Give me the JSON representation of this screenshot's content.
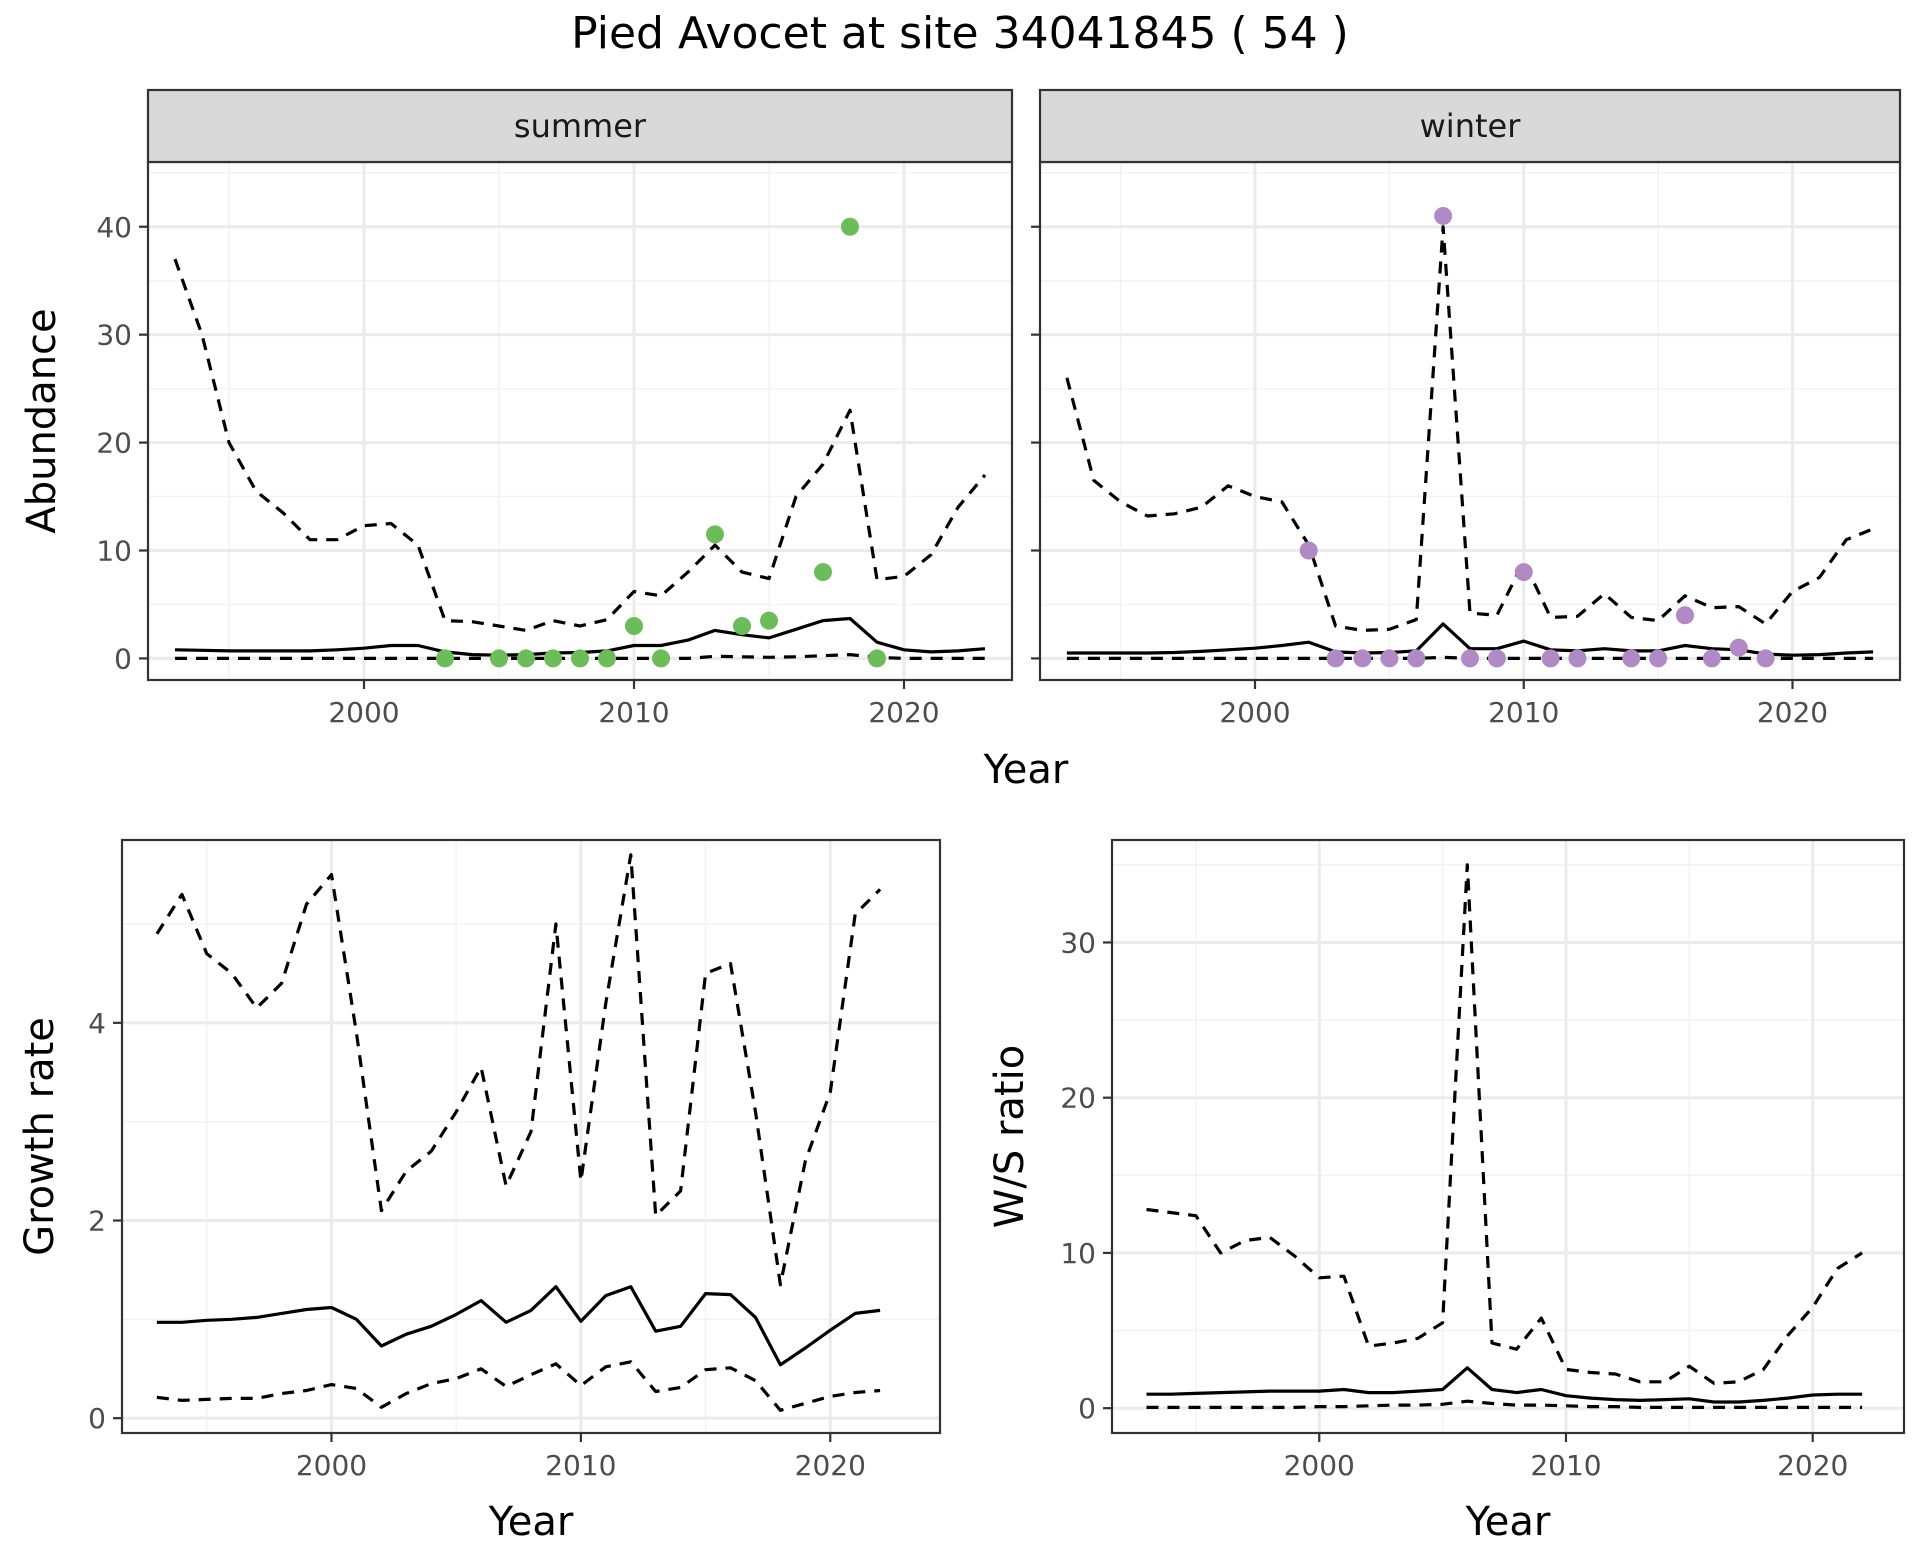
{
  "figure": {
    "title": "Pied Avocet at site 34041845 ( 54 )"
  },
  "chart_data": [
    {
      "id": "summer",
      "type": "line",
      "facet_label": "summer",
      "xlabel": "Year",
      "ylabel": "Abundance",
      "xlim": [
        1992,
        2024
      ],
      "ylim": [
        -2,
        46
      ],
      "x_ticks": [
        2000,
        2010,
        2020
      ],
      "y_ticks": [
        0,
        10,
        20,
        30,
        40
      ],
      "grid": true,
      "point_color": "#6cbc5a",
      "series": [
        {
          "name": "",
          "style": "solid",
          "x": [
            1993,
            1994,
            1995,
            1996,
            1997,
            1998,
            1999,
            2000,
            2001,
            2002,
            2003,
            2004,
            2005,
            2006,
            2007,
            2008,
            2009,
            2010,
            2011,
            2012,
            2013,
            2014,
            2015,
            2016,
            2017,
            2018,
            2019,
            2020,
            2021,
            2022,
            2023
          ],
          "y": [
            0.8,
            0.75,
            0.7,
            0.7,
            0.7,
            0.7,
            0.8,
            0.95,
            1.2,
            1.2,
            0.6,
            0.35,
            0.3,
            0.35,
            0.5,
            0.55,
            0.7,
            1.2,
            1.2,
            1.7,
            2.6,
            2.2,
            1.9,
            2.7,
            3.5,
            3.7,
            1.5,
            0.8,
            0.6,
            0.7,
            0.9
          ]
        },
        {
          "name": "",
          "style": "dashed",
          "x": [
            1993,
            1994,
            1995,
            1996,
            1997,
            1998,
            1999,
            2000,
            2001,
            2002,
            2003,
            2004,
            2005,
            2006,
            2007,
            2008,
            2009,
            2010,
            2011,
            2012,
            2013,
            2014,
            2015,
            2016,
            2017,
            2018,
            2019,
            2020,
            2021,
            2022,
            2023
          ],
          "y": [
            37,
            30,
            20,
            15.5,
            13.5,
            11,
            11,
            12.3,
            12.5,
            10.5,
            3.5,
            3.4,
            3,
            2.6,
            3.5,
            3,
            3.6,
            6.2,
            5.8,
            8,
            10.5,
            8,
            7.4,
            15,
            18,
            23,
            7.3,
            7.6,
            9.6,
            14,
            17
          ]
        },
        {
          "name": "",
          "style": "dashed",
          "x": [
            1993,
            1994,
            1995,
            1996,
            1997,
            1998,
            1999,
            2000,
            2001,
            2002,
            2003,
            2004,
            2005,
            2006,
            2007,
            2008,
            2009,
            2010,
            2011,
            2012,
            2013,
            2014,
            2015,
            2016,
            2017,
            2018,
            2019,
            2020,
            2021,
            2022,
            2023
          ],
          "y": [
            0,
            0,
            0,
            0,
            0,
            0,
            0,
            0,
            0,
            0,
            0,
            0,
            0,
            0,
            0,
            0,
            0,
            0,
            0,
            0,
            0.2,
            0.15,
            0.1,
            0.15,
            0.25,
            0.35,
            0.1,
            0,
            0,
            0,
            0
          ]
        }
      ],
      "points": {
        "x": [
          2003,
          2005,
          2006,
          2007,
          2008,
          2009,
          2010,
          2011,
          2013,
          2014,
          2015,
          2017,
          2018,
          2019
        ],
        "y": [
          0,
          0,
          0,
          0,
          0,
          0,
          3,
          0,
          11.5,
          3,
          3.5,
          8,
          40,
          0
        ]
      }
    },
    {
      "id": "winter",
      "type": "line",
      "facet_label": "winter",
      "xlabel": "Year",
      "ylabel": "Abundance",
      "xlim": [
        1992,
        2024
      ],
      "ylim": [
        -2,
        46
      ],
      "x_ticks": [
        2000,
        2010,
        2020
      ],
      "y_ticks": [
        0,
        10,
        20,
        30,
        40
      ],
      "grid": true,
      "point_color": "#b18ac5",
      "series": [
        {
          "name": "",
          "style": "solid",
          "x": [
            1993,
            1994,
            1995,
            1996,
            1997,
            1998,
            1999,
            2000,
            2001,
            2002,
            2003,
            2004,
            2005,
            2006,
            2007,
            2008,
            2009,
            2010,
            2011,
            2012,
            2013,
            2014,
            2015,
            2016,
            2017,
            2018,
            2019,
            2020,
            2021,
            2022,
            2023
          ],
          "y": [
            0.5,
            0.5,
            0.5,
            0.5,
            0.55,
            0.65,
            0.8,
            0.95,
            1.2,
            1.5,
            0.6,
            0.5,
            0.55,
            0.7,
            3.2,
            0.9,
            0.9,
            1.6,
            0.8,
            0.7,
            0.9,
            0.7,
            0.7,
            1.2,
            0.9,
            0.8,
            0.4,
            0.3,
            0.35,
            0.5,
            0.6
          ]
        },
        {
          "name": "",
          "style": "dashed",
          "x": [
            1993,
            1994,
            1995,
            1996,
            1997,
            1998,
            1999,
            2000,
            2001,
            2002,
            2003,
            2004,
            2005,
            2006,
            2007,
            2008,
            2009,
            2010,
            2011,
            2012,
            2013,
            2014,
            2015,
            2016,
            2017,
            2018,
            2019,
            2020,
            2021,
            2022,
            2023
          ],
          "y": [
            26,
            16.5,
            14.5,
            13.2,
            13.4,
            14,
            16,
            15,
            14.5,
            10.5,
            3,
            2.6,
            2.7,
            3.6,
            40,
            4.2,
            4,
            9,
            3.8,
            3.9,
            6,
            3.8,
            3.5,
            5.8,
            4.7,
            4.8,
            3.2,
            6.2,
            7.5,
            11,
            12
          ]
        },
        {
          "name": "",
          "style": "dashed",
          "x": [
            1993,
            1994,
            1995,
            1996,
            1997,
            1998,
            1999,
            2000,
            2001,
            2002,
            2003,
            2004,
            2005,
            2006,
            2007,
            2008,
            2009,
            2010,
            2011,
            2012,
            2013,
            2014,
            2015,
            2016,
            2017,
            2018,
            2019,
            2020,
            2021,
            2022,
            2023
          ],
          "y": [
            0,
            0,
            0,
            0,
            0,
            0,
            0,
            0,
            0,
            0,
            0,
            0,
            0,
            0,
            0.1,
            0,
            0,
            0,
            0,
            0,
            0,
            0,
            0,
            0,
            0,
            0,
            0,
            0,
            0,
            0,
            0
          ]
        }
      ],
      "points": {
        "x": [
          2002,
          2003,
          2004,
          2005,
          2006,
          2007,
          2008,
          2009,
          2010,
          2011,
          2012,
          2014,
          2015,
          2016,
          2017,
          2018,
          2019
        ],
        "y": [
          10,
          0,
          0,
          0,
          0,
          41,
          0,
          0,
          8,
          0,
          0,
          0,
          0,
          4,
          0,
          1,
          0
        ]
      }
    },
    {
      "id": "growth",
      "type": "line",
      "xlabel": "Year",
      "ylabel": "Growth rate",
      "xlim": [
        1991.6,
        2024.4
      ],
      "ylim": [
        -0.15,
        5.85
      ],
      "x_ticks": [
        2000,
        2010,
        2020
      ],
      "y_ticks": [
        0,
        2,
        4
      ],
      "grid": true,
      "series": [
        {
          "name": "",
          "style": "solid",
          "x": [
            1993,
            1994,
            1995,
            1996,
            1997,
            1998,
            1999,
            2000,
            2001,
            2002,
            2003,
            2004,
            2005,
            2006,
            2007,
            2008,
            2009,
            2010,
            2011,
            2012,
            2013,
            2014,
            2015,
            2016,
            2017,
            2018,
            2019,
            2020,
            2021,
            2022
          ],
          "y": [
            0.97,
            0.97,
            0.99,
            1.0,
            1.02,
            1.06,
            1.1,
            1.12,
            1.0,
            0.73,
            0.85,
            0.93,
            1.05,
            1.19,
            0.97,
            1.09,
            1.33,
            0.98,
            1.24,
            1.33,
            0.88,
            0.93,
            1.26,
            1.25,
            1.02,
            0.54,
            0.71,
            0.89,
            1.06,
            1.09
          ]
        },
        {
          "name": "",
          "style": "dashed",
          "x": [
            1993,
            1994,
            1995,
            1996,
            1997,
            1998,
            1999,
            2000,
            2001,
            2002,
            2003,
            2004,
            2005,
            2006,
            2007,
            2008,
            2009,
            2010,
            2011,
            2012,
            2013,
            2014,
            2015,
            2016,
            2017,
            2018,
            2019,
            2020,
            2021,
            2022
          ],
          "y": [
            4.9,
            5.3,
            4.7,
            4.5,
            4.15,
            4.4,
            5.2,
            5.5,
            3.9,
            2.1,
            2.5,
            2.7,
            3.1,
            3.55,
            2.35,
            2.9,
            5.0,
            2.4,
            4.2,
            5.7,
            2.05,
            2.3,
            4.5,
            4.6,
            3.1,
            1.35,
            2.6,
            3.3,
            5.1,
            5.35
          ]
        },
        {
          "name": "",
          "style": "dashed",
          "x": [
            1993,
            1994,
            1995,
            1996,
            1997,
            1998,
            1999,
            2000,
            2001,
            2002,
            2003,
            2004,
            2005,
            2006,
            2007,
            2008,
            2009,
            2010,
            2011,
            2012,
            2013,
            2014,
            2015,
            2016,
            2017,
            2018,
            2019,
            2020,
            2021,
            2022
          ],
          "y": [
            0.21,
            0.18,
            0.19,
            0.2,
            0.2,
            0.25,
            0.28,
            0.34,
            0.3,
            0.11,
            0.25,
            0.35,
            0.4,
            0.5,
            0.32,
            0.44,
            0.55,
            0.33,
            0.52,
            0.57,
            0.27,
            0.31,
            0.49,
            0.51,
            0.38,
            0.08,
            0.15,
            0.22,
            0.26,
            0.28
          ]
        }
      ]
    },
    {
      "id": "ratio",
      "type": "line",
      "xlabel": "Year",
      "ylabel": "W/S ratio",
      "xlim": [
        1991.6,
        2023.7
      ],
      "ylim": [
        -1.6,
        36.6
      ],
      "x_ticks": [
        2000,
        2010,
        2020
      ],
      "y_ticks": [
        0,
        10,
        20,
        30
      ],
      "grid": true,
      "series": [
        {
          "name": "",
          "style": "solid",
          "x": [
            1993,
            1994,
            1995,
            1996,
            1997,
            1998,
            1999,
            2000,
            2001,
            2002,
            2003,
            2004,
            2005,
            2006,
            2007,
            2008,
            2009,
            2010,
            2011,
            2012,
            2013,
            2014,
            2015,
            2016,
            2017,
            2018,
            2019,
            2020,
            2021,
            2022
          ],
          "y": [
            0.9,
            0.9,
            0.95,
            1.0,
            1.05,
            1.1,
            1.1,
            1.1,
            1.2,
            1.0,
            1.0,
            1.1,
            1.2,
            2.6,
            1.2,
            1.0,
            1.2,
            0.8,
            0.65,
            0.55,
            0.5,
            0.55,
            0.6,
            0.4,
            0.4,
            0.5,
            0.65,
            0.85,
            0.9,
            0.9
          ]
        },
        {
          "name": "",
          "style": "dashed",
          "x": [
            1993,
            1994,
            1995,
            1996,
            1997,
            1998,
            1999,
            2000,
            2001,
            2002,
            2003,
            2004,
            2005,
            2006,
            2007,
            2008,
            2009,
            2010,
            2011,
            2012,
            2013,
            2014,
            2015,
            2016,
            2017,
            2018,
            2019,
            2020,
            2021,
            2022
          ],
          "y": [
            12.8,
            12.6,
            12.4,
            10,
            10.8,
            11,
            9.8,
            8.4,
            8.5,
            4,
            4.2,
            4.5,
            5.5,
            35,
            4.2,
            3.8,
            5.8,
            2.5,
            2.3,
            2.2,
            1.7,
            1.7,
            2.7,
            1.6,
            1.7,
            2.5,
            4.7,
            6.5,
            9,
            10
          ]
        },
        {
          "name": "",
          "style": "dashed",
          "x": [
            1993,
            1994,
            1995,
            1996,
            1997,
            1998,
            1999,
            2000,
            2001,
            2002,
            2003,
            2004,
            2005,
            2006,
            2007,
            2008,
            2009,
            2010,
            2011,
            2012,
            2013,
            2014,
            2015,
            2016,
            2017,
            2018,
            2019,
            2020,
            2021,
            2022
          ],
          "y": [
            0.05,
            0.05,
            0.05,
            0.05,
            0.05,
            0.05,
            0.05,
            0.1,
            0.1,
            0.15,
            0.2,
            0.2,
            0.25,
            0.45,
            0.3,
            0.2,
            0.2,
            0.15,
            0.1,
            0.1,
            0.05,
            0.05,
            0.05,
            0.05,
            0.05,
            0.05,
            0.05,
            0.05,
            0.05,
            0.05
          ]
        }
      ]
    }
  ]
}
